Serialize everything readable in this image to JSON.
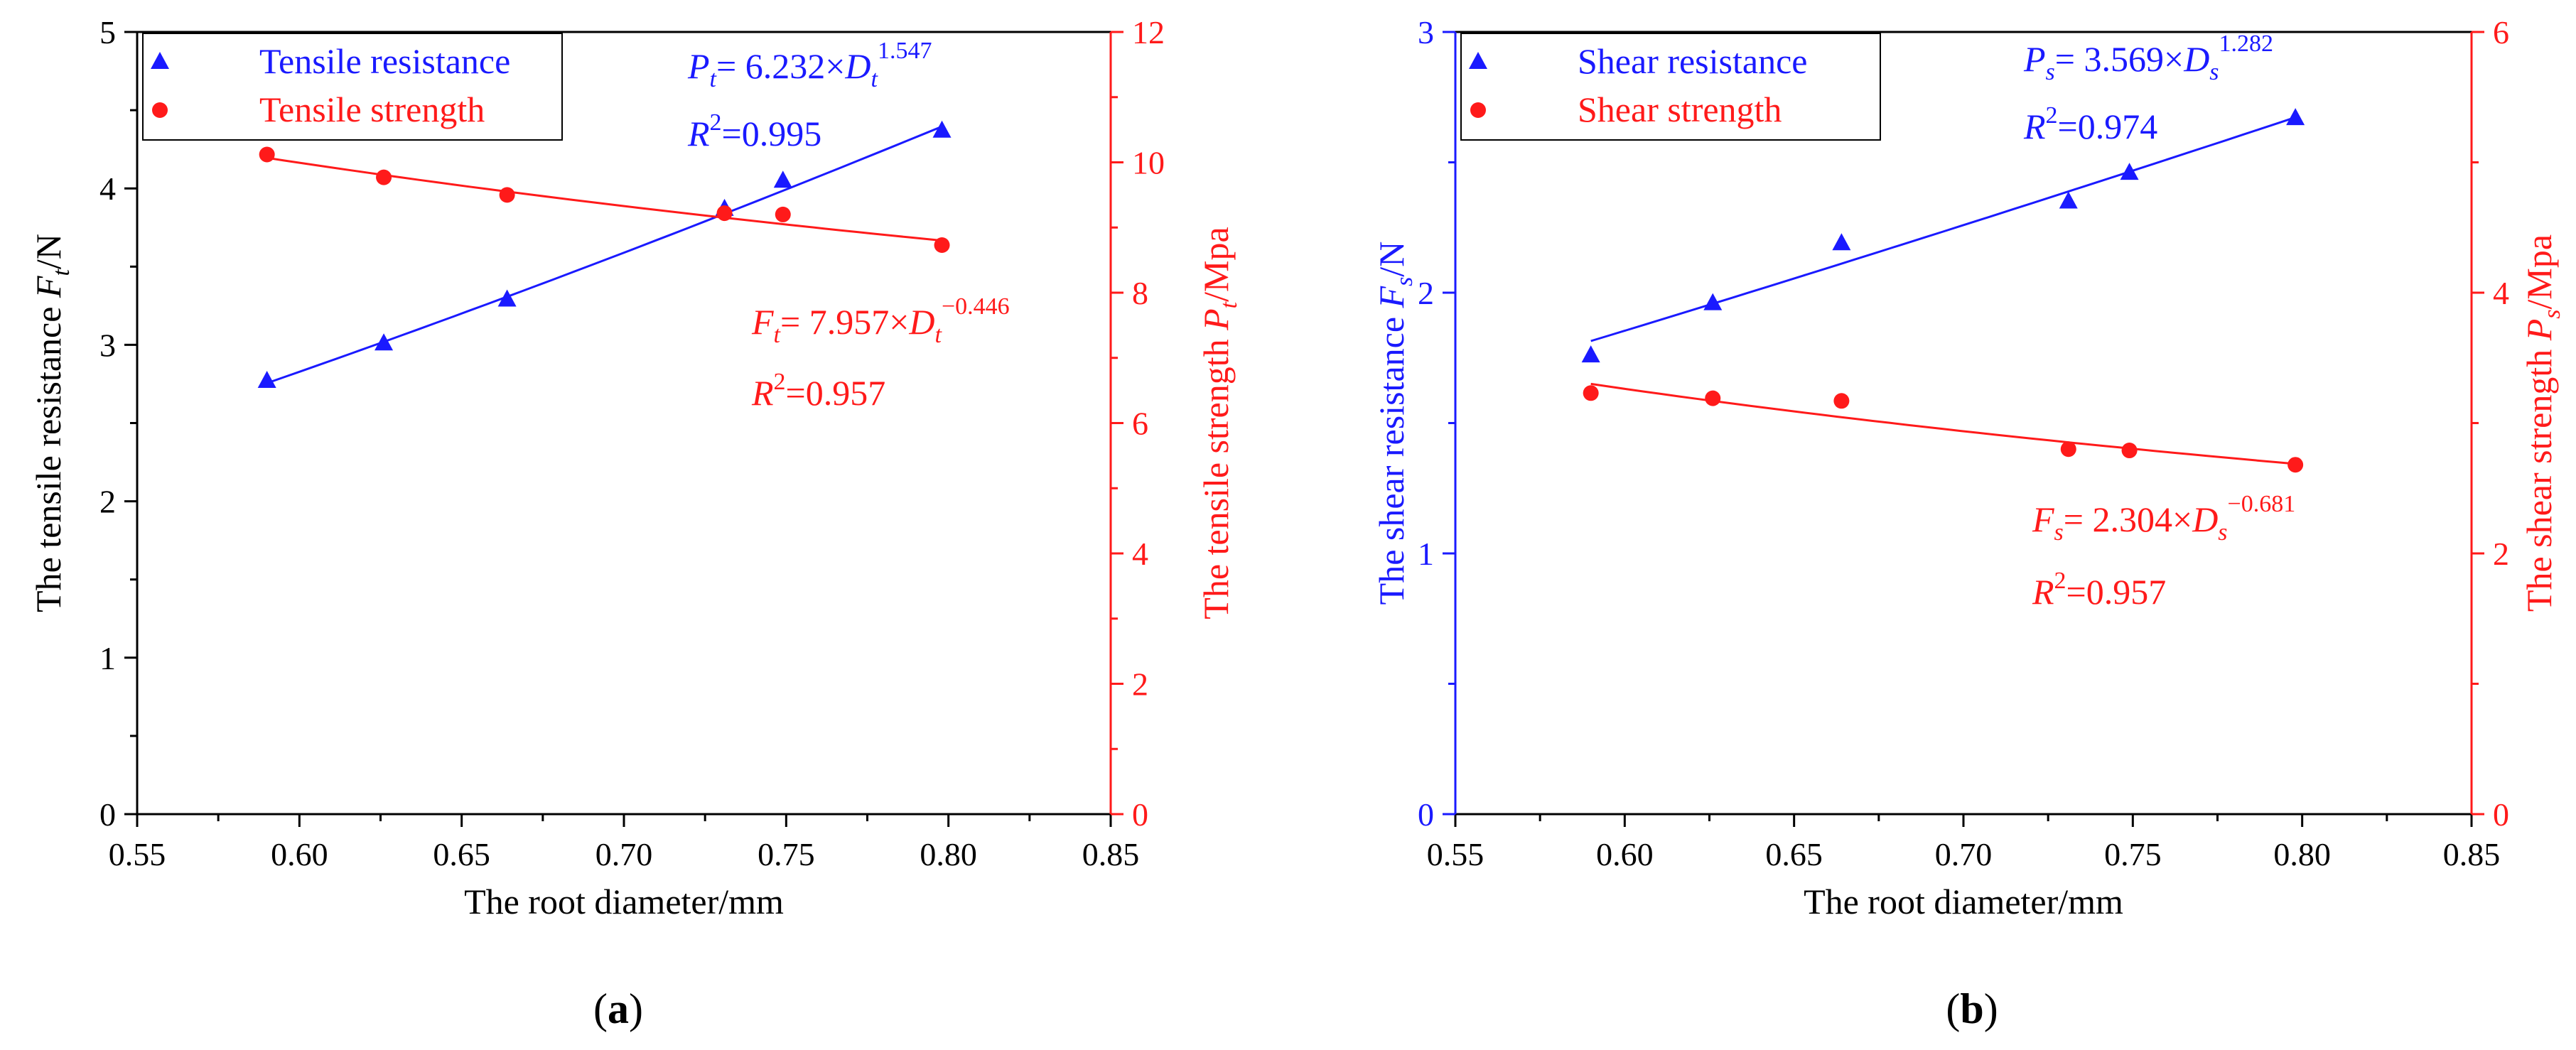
{
  "colors": {
    "blue": "#1a1aff",
    "red": "#ff1a1a",
    "axis_black": "#000000"
  },
  "chart_data": [
    {
      "type": "scatter",
      "panel_label": {
        "open": "(",
        "letter": "a",
        "close": ")"
      },
      "x": [
        0.59,
        0.626,
        0.664,
        0.731,
        0.749,
        0.798
      ],
      "xlabel": "The root diameter/mm",
      "xlim": [
        0.55,
        0.85
      ],
      "xticks": [
        "0.55",
        "0.60",
        "0.65",
        "0.70",
        "0.75",
        "0.80",
        "0.85"
      ],
      "left_axis": {
        "label_main": "The tensile resistance ",
        "label_var": "F",
        "label_sub": "t",
        "label_unit": "/N",
        "color": "#000000",
        "ylim": [
          0,
          5
        ],
        "ticks": [
          "0",
          "1",
          "2",
          "3",
          "4",
          "5"
        ]
      },
      "right_axis": {
        "label_main": "The tensile strength ",
        "label_var": "P",
        "label_sub": "t",
        "label_unit": "/Mpa",
        "color": "#ff1a1a",
        "ylim": [
          0,
          12
        ],
        "ticks": [
          "0",
          "2",
          "4",
          "6",
          "8",
          "10",
          "12"
        ]
      },
      "series": [
        {
          "name": "Tensile resistance",
          "axis": "left",
          "marker": "triangle",
          "color": "#1a1aff",
          "values": [
            2.77,
            3.01,
            3.29,
            3.87,
            4.05,
            4.37
          ],
          "fit": {
            "a": 6.232,
            "b": 1.547
          },
          "eq": {
            "var": "P",
            "sub": "t",
            "mid": "= 6.232×",
            "var2": "D",
            "sub2": "t",
            "exp": "1.547"
          },
          "r2": {
            "r": "R",
            "two": "2",
            "val": "=0.995"
          }
        },
        {
          "name": "Tensile strength",
          "axis": "right",
          "marker": "circle",
          "color": "#ff1a1a",
          "values": [
            10.12,
            9.77,
            9.5,
            9.22,
            9.2,
            8.73
          ],
          "fit": {
            "a": 7.957,
            "b": -0.446
          },
          "eq": {
            "var": "F",
            "sub": "t",
            "mid": "= 7.957×",
            "var2": "D",
            "sub2": "t",
            "exp": "−0.446"
          },
          "r2": {
            "r": "R",
            "two": "2",
            "val": "=0.957"
          }
        }
      ]
    },
    {
      "type": "scatter",
      "panel_label": {
        "open": "(",
        "letter": "b",
        "close": ")"
      },
      "x": [
        0.59,
        0.626,
        0.664,
        0.731,
        0.749,
        0.798
      ],
      "xlabel": "The root diameter/mm",
      "xlim": [
        0.55,
        0.85
      ],
      "xticks": [
        "0.55",
        "0.60",
        "0.65",
        "0.70",
        "0.75",
        "0.80",
        "0.85"
      ],
      "left_axis": {
        "label_main": "The shear resistance ",
        "label_var": "F",
        "label_sub": "s",
        "label_unit": "/N",
        "color": "#1a1aff",
        "ylim": [
          0,
          3
        ],
        "ticks": [
          "0",
          "1",
          "2",
          "3"
        ]
      },
      "right_axis": {
        "label_main": "The shear  strength ",
        "label_var": "P",
        "label_sub": "s",
        "label_unit": "/Mpa",
        "color": "#ff1a1a",
        "ylim": [
          0,
          6
        ],
        "ticks": [
          "0",
          "2",
          "4",
          "6"
        ]
      },
      "series": [
        {
          "name": "Shear resistance",
          "axis": "left",
          "marker": "triangle",
          "color": "#1a1aff",
          "values": [
            1.76,
            1.96,
            2.19,
            2.35,
            2.46,
            2.67
          ],
          "fit": {
            "a": 3.569,
            "b": 1.282
          },
          "eq": {
            "var": "P",
            "sub": "s",
            "mid": "= 3.569×",
            "var2": "D",
            "sub2": "s",
            "exp": "1.282"
          },
          "r2": {
            "r": "R",
            "two": "2",
            "val": "=0.974"
          }
        },
        {
          "name": "Shear strength",
          "axis": "right",
          "marker": "circle",
          "color": "#ff1a1a",
          "values": [
            3.23,
            3.19,
            3.17,
            2.8,
            2.79,
            2.68
          ],
          "fit": {
            "a": 2.304,
            "b": -0.681
          },
          "eq": {
            "var": "F",
            "sub": "s",
            "mid": "= 2.304×",
            "var2": "D",
            "sub2": "s",
            "exp": "−0.681"
          },
          "r2": {
            "r": "R",
            "two": "2",
            "val": "=0.957"
          }
        }
      ]
    }
  ]
}
